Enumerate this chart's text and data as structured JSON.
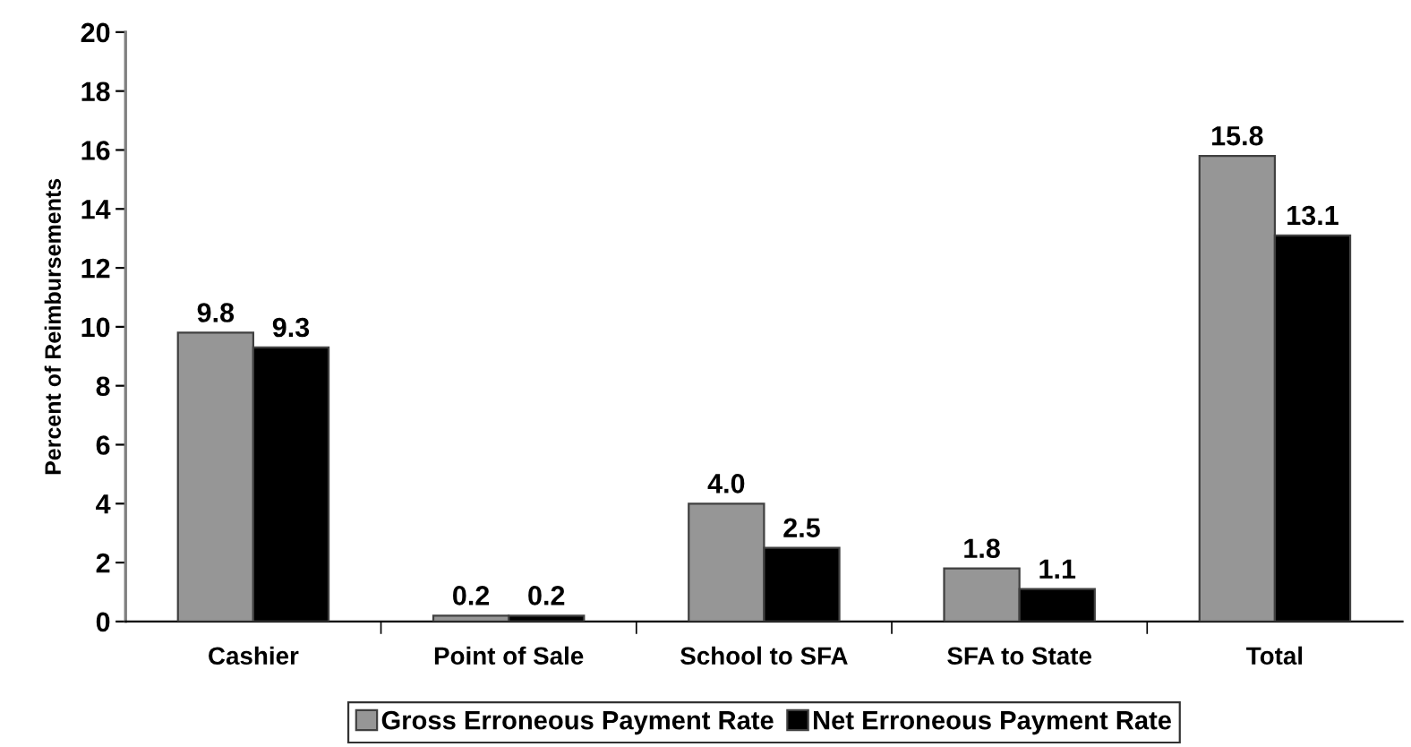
{
  "chart_data": {
    "type": "bar",
    "ylabel": "Percent of Reimbursements",
    "categories": [
      "Cashier",
      "Point of Sale",
      "School to SFA",
      "SFA to State",
      "Total"
    ],
    "series": [
      {
        "name": "Gross Erroneous Payment Rate",
        "color": "#969696",
        "values": [
          9.8,
          0.2,
          4.0,
          1.8,
          15.8
        ],
        "value_labels": [
          "9.8",
          "0.2",
          "4.0",
          "1.8",
          "15.8"
        ]
      },
      {
        "name": "Net Erroneous Payment Rate",
        "color": "#000000",
        "values": [
          9.3,
          0.2,
          2.5,
          1.1,
          13.1
        ],
        "value_labels": [
          "9.3",
          "0.2",
          "2.5",
          "1.1",
          "13.1"
        ]
      }
    ],
    "ylim": [
      0,
      20
    ],
    "yticks": [
      0,
      2,
      4,
      6,
      8,
      10,
      12,
      14,
      16,
      18,
      20
    ],
    "legend": "bottom",
    "grid": false
  }
}
